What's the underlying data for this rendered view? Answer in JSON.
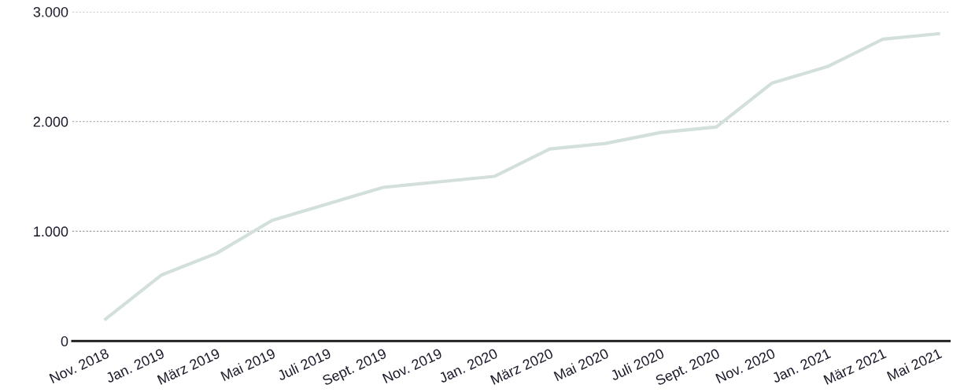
{
  "chart_data": {
    "type": "line",
    "categories": [
      "Nov. 2018",
      "Jan. 2019",
      "März 2019",
      "Mai 2019",
      "Juli 2019",
      "Sept. 2019",
      "Nov. 2019",
      "Jan. 2020",
      "März 2020",
      "Mai 2020",
      "Juli 2020",
      "Sept. 2020",
      "Nov. 2020",
      "Jan. 2021",
      "März 2021",
      "Mai 2021"
    ],
    "series": [
      {
        "color": "#d3e0da",
        "values": [
          200,
          600,
          800,
          1100,
          1250,
          1400,
          1450,
          1500,
          1750,
          1800,
          1900,
          1950,
          2350,
          2500,
          2750,
          2800
        ]
      }
    ],
    "ylim": [
      0,
      3000
    ],
    "yticks": [
      {
        "value": 0,
        "label": "0"
      },
      {
        "value": 1000,
        "label": "1.000"
      },
      {
        "value": 2000,
        "label": "2.000"
      },
      {
        "value": 3000,
        "label": "3.000"
      }
    ],
    "grid": "y",
    "marker": "none",
    "line_style": "solid"
  }
}
